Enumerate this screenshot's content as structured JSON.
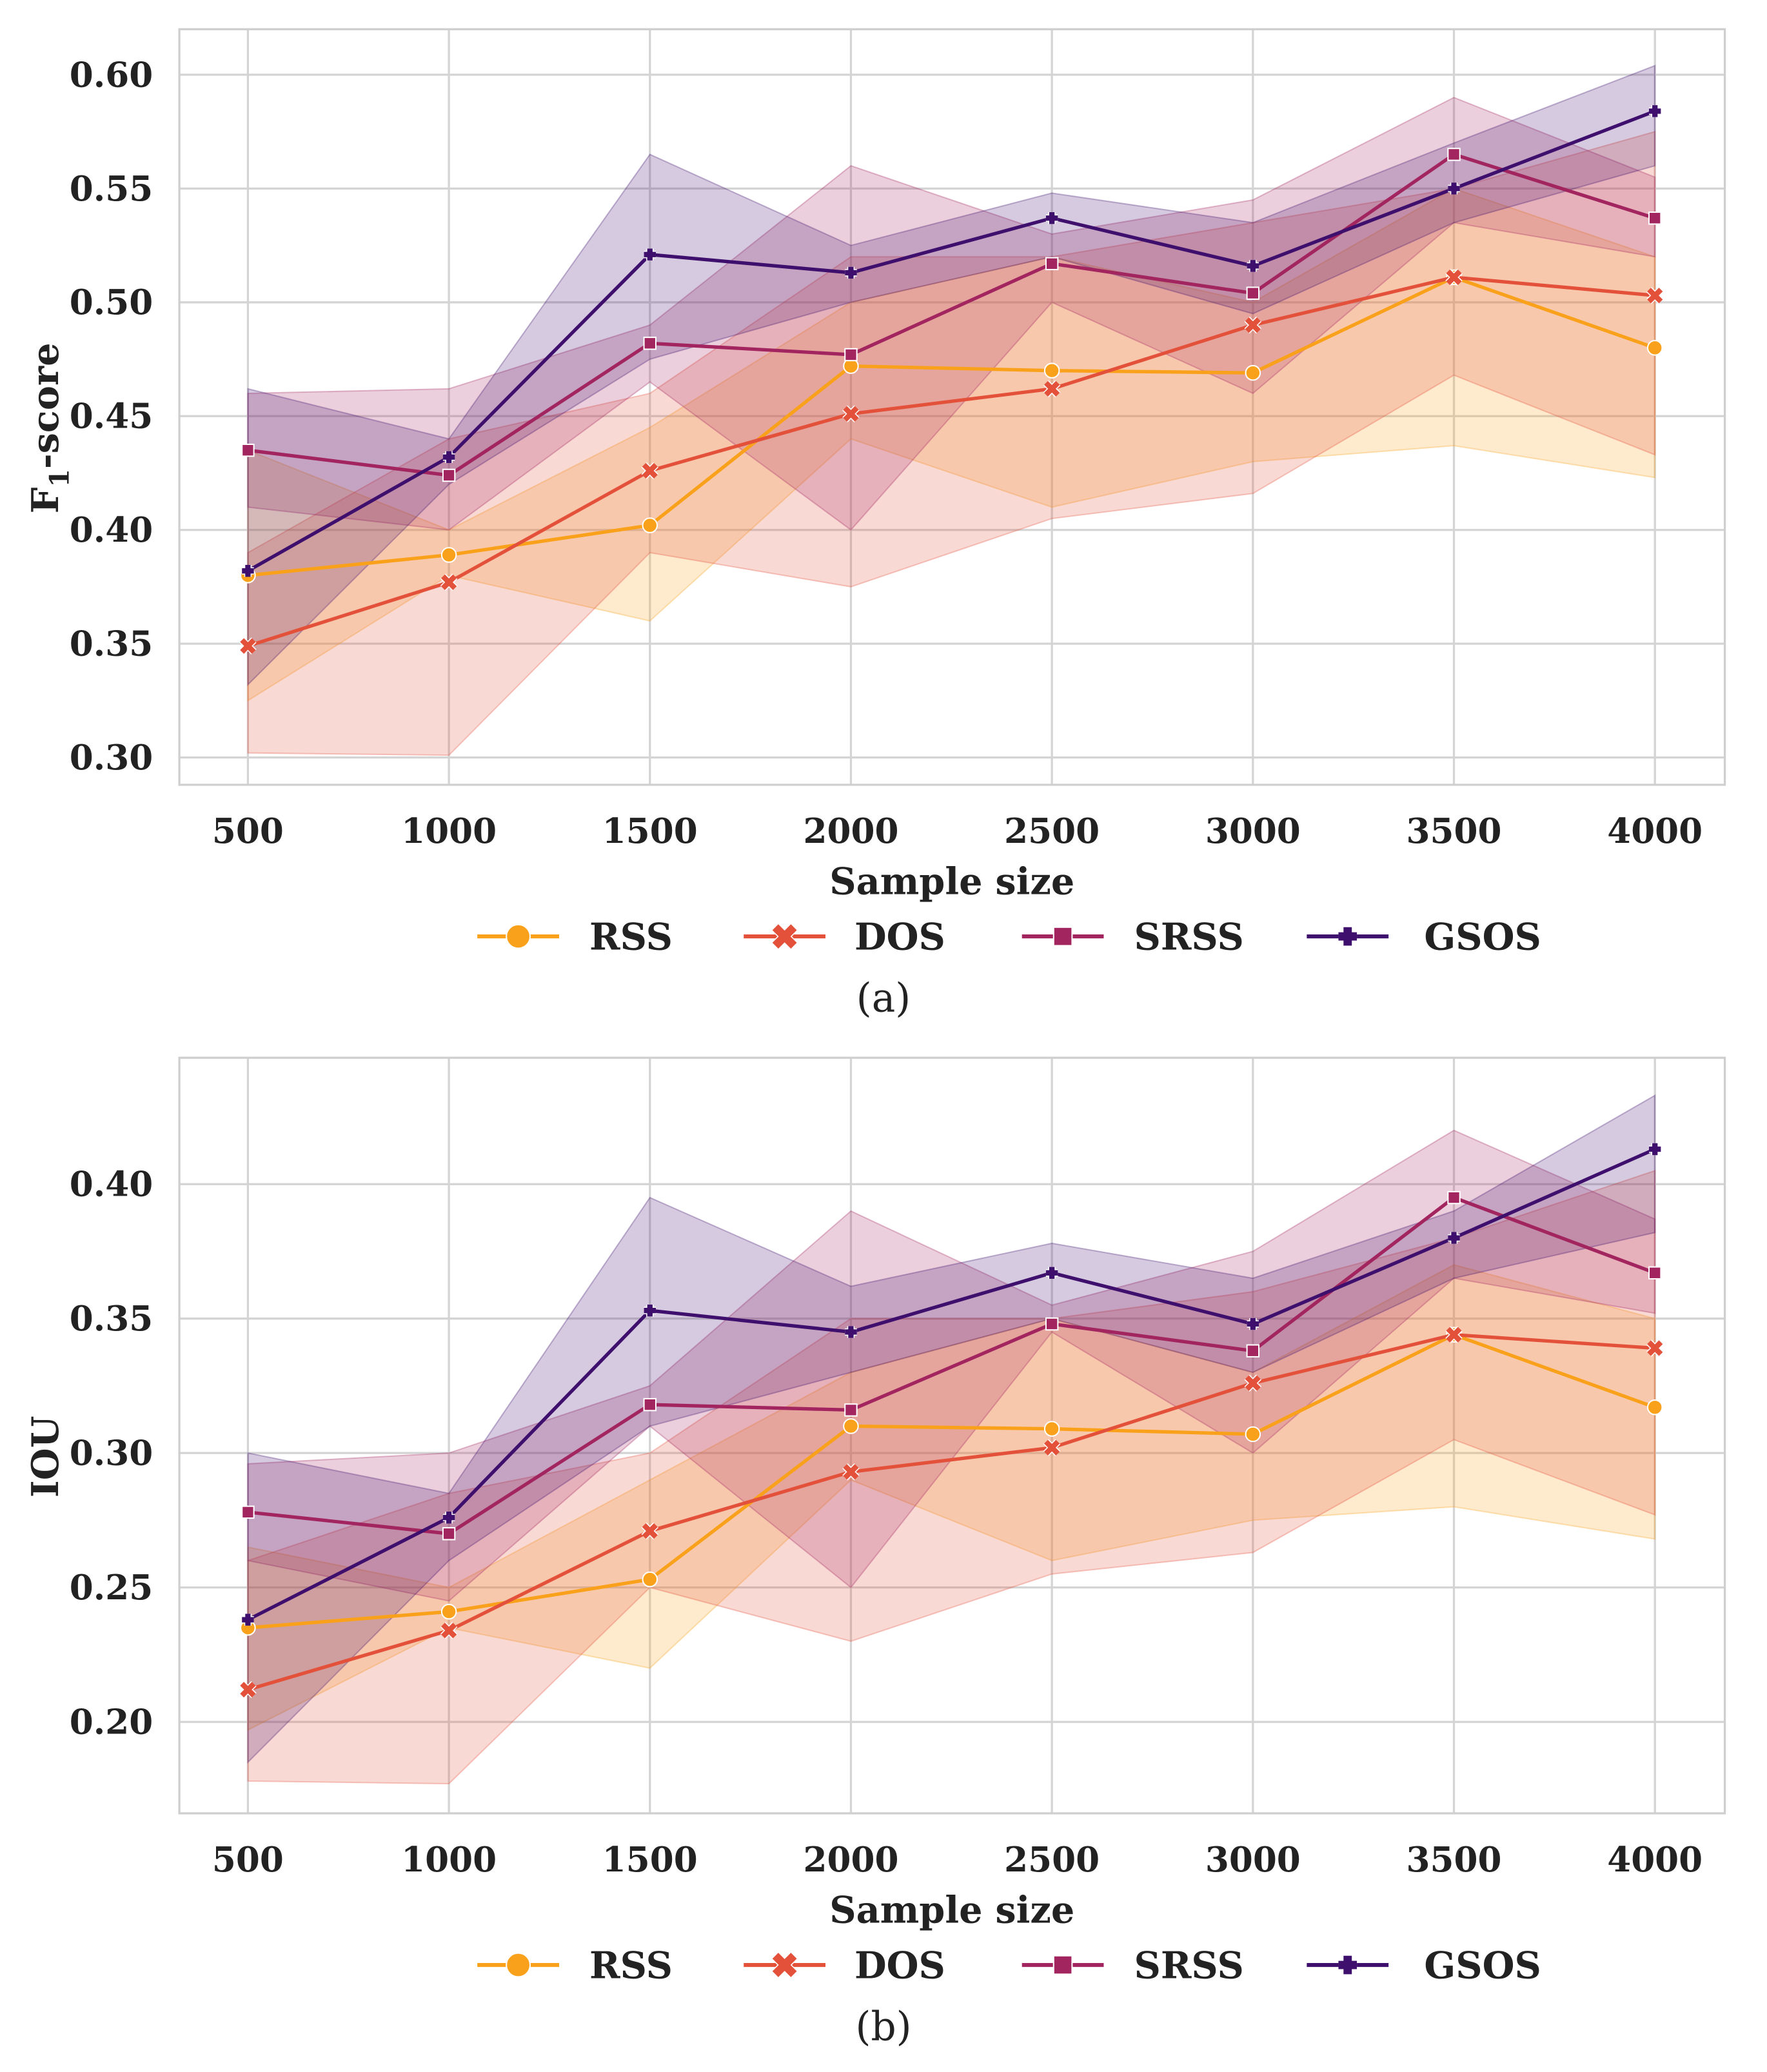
{
  "colors": {
    "RSS": "#f9a11b",
    "DOS": "#e4513a",
    "SRSS": "#a2255f",
    "GSOS": "#3e0f6c"
  },
  "markers": {
    "RSS": "circle",
    "DOS": "x",
    "SRSS": "square",
    "GSOS": "plus"
  },
  "chart_data": [
    {
      "type": "line",
      "caption": "(a)",
      "xlabel": "Sample size",
      "ylabel_main": "F",
      "ylabel_sub": "1",
      "ylabel_rest": "-score",
      "x": [
        500,
        1000,
        1500,
        2000,
        2500,
        3000,
        3500,
        4000
      ],
      "yticks": [
        "0.30",
        "0.35",
        "0.40",
        "0.45",
        "0.50",
        "0.55",
        "0.60"
      ],
      "ylim": [
        0.288,
        0.62
      ],
      "grid": true,
      "legend": "bottom",
      "series": [
        {
          "name": "RSS",
          "values": [
            0.38,
            0.389,
            0.402,
            0.472,
            0.47,
            0.469,
            0.511,
            0.48
          ],
          "lower": [
            0.325,
            0.38,
            0.36,
            0.44,
            0.41,
            0.43,
            0.437,
            0.423
          ],
          "upper": [
            0.435,
            0.4,
            0.445,
            0.5,
            0.52,
            0.5,
            0.55,
            0.52
          ]
        },
        {
          "name": "DOS",
          "values": [
            0.349,
            0.377,
            0.426,
            0.451,
            0.462,
            0.49,
            0.511,
            0.503
          ],
          "lower": [
            0.302,
            0.301,
            0.39,
            0.375,
            0.405,
            0.416,
            0.468,
            0.433
          ],
          "upper": [
            0.39,
            0.44,
            0.46,
            0.52,
            0.52,
            0.535,
            0.55,
            0.575
          ]
        },
        {
          "name": "SRSS",
          "values": [
            0.435,
            0.424,
            0.482,
            0.477,
            0.517,
            0.504,
            0.565,
            0.537
          ],
          "lower": [
            0.41,
            0.4,
            0.465,
            0.4,
            0.5,
            0.46,
            0.535,
            0.52
          ],
          "upper": [
            0.46,
            0.462,
            0.49,
            0.56,
            0.53,
            0.545,
            0.59,
            0.555
          ]
        },
        {
          "name": "GSOS",
          "values": [
            0.382,
            0.432,
            0.521,
            0.513,
            0.537,
            0.516,
            0.55,
            0.584
          ],
          "lower": [
            0.332,
            0.42,
            0.475,
            0.5,
            0.52,
            0.495,
            0.535,
            0.56
          ],
          "upper": [
            0.462,
            0.44,
            0.565,
            0.525,
            0.548,
            0.535,
            0.57,
            0.604
          ]
        }
      ]
    },
    {
      "type": "line",
      "caption": "(b)",
      "xlabel": "Sample size",
      "ylabel_main": "IOU",
      "ylabel_sub": "",
      "ylabel_rest": "",
      "x": [
        500,
        1000,
        1500,
        2000,
        2500,
        3000,
        3500,
        4000
      ],
      "yticks": [
        "0.20",
        "0.25",
        "0.30",
        "0.35",
        "0.40"
      ],
      "ylim": [
        0.166,
        0.447
      ],
      "grid": true,
      "legend": "bottom",
      "series": [
        {
          "name": "RSS",
          "values": [
            0.235,
            0.241,
            0.253,
            0.31,
            0.309,
            0.307,
            0.344,
            0.317
          ],
          "lower": [
            0.197,
            0.235,
            0.22,
            0.29,
            0.26,
            0.275,
            0.28,
            0.268
          ],
          "upper": [
            0.265,
            0.25,
            0.29,
            0.33,
            0.35,
            0.33,
            0.37,
            0.35
          ]
        },
        {
          "name": "DOS",
          "values": [
            0.212,
            0.234,
            0.271,
            0.293,
            0.302,
            0.326,
            0.344,
            0.339
          ],
          "lower": [
            0.178,
            0.177,
            0.25,
            0.23,
            0.255,
            0.263,
            0.305,
            0.277
          ],
          "upper": [
            0.26,
            0.285,
            0.3,
            0.35,
            0.35,
            0.36,
            0.38,
            0.405
          ]
        },
        {
          "name": "SRSS",
          "values": [
            0.278,
            0.27,
            0.318,
            0.316,
            0.348,
            0.338,
            0.395,
            0.367
          ],
          "lower": [
            0.26,
            0.245,
            0.31,
            0.25,
            0.345,
            0.3,
            0.365,
            0.352
          ],
          "upper": [
            0.296,
            0.3,
            0.325,
            0.39,
            0.355,
            0.375,
            0.42,
            0.387
          ]
        },
        {
          "name": "GSOS",
          "values": [
            0.238,
            0.276,
            0.353,
            0.345,
            0.367,
            0.348,
            0.38,
            0.413
          ],
          "lower": [
            0.185,
            0.26,
            0.31,
            0.33,
            0.35,
            0.33,
            0.365,
            0.382
          ],
          "upper": [
            0.3,
            0.285,
            0.395,
            0.362,
            0.378,
            0.365,
            0.39,
            0.433
          ]
        }
      ]
    }
  ]
}
